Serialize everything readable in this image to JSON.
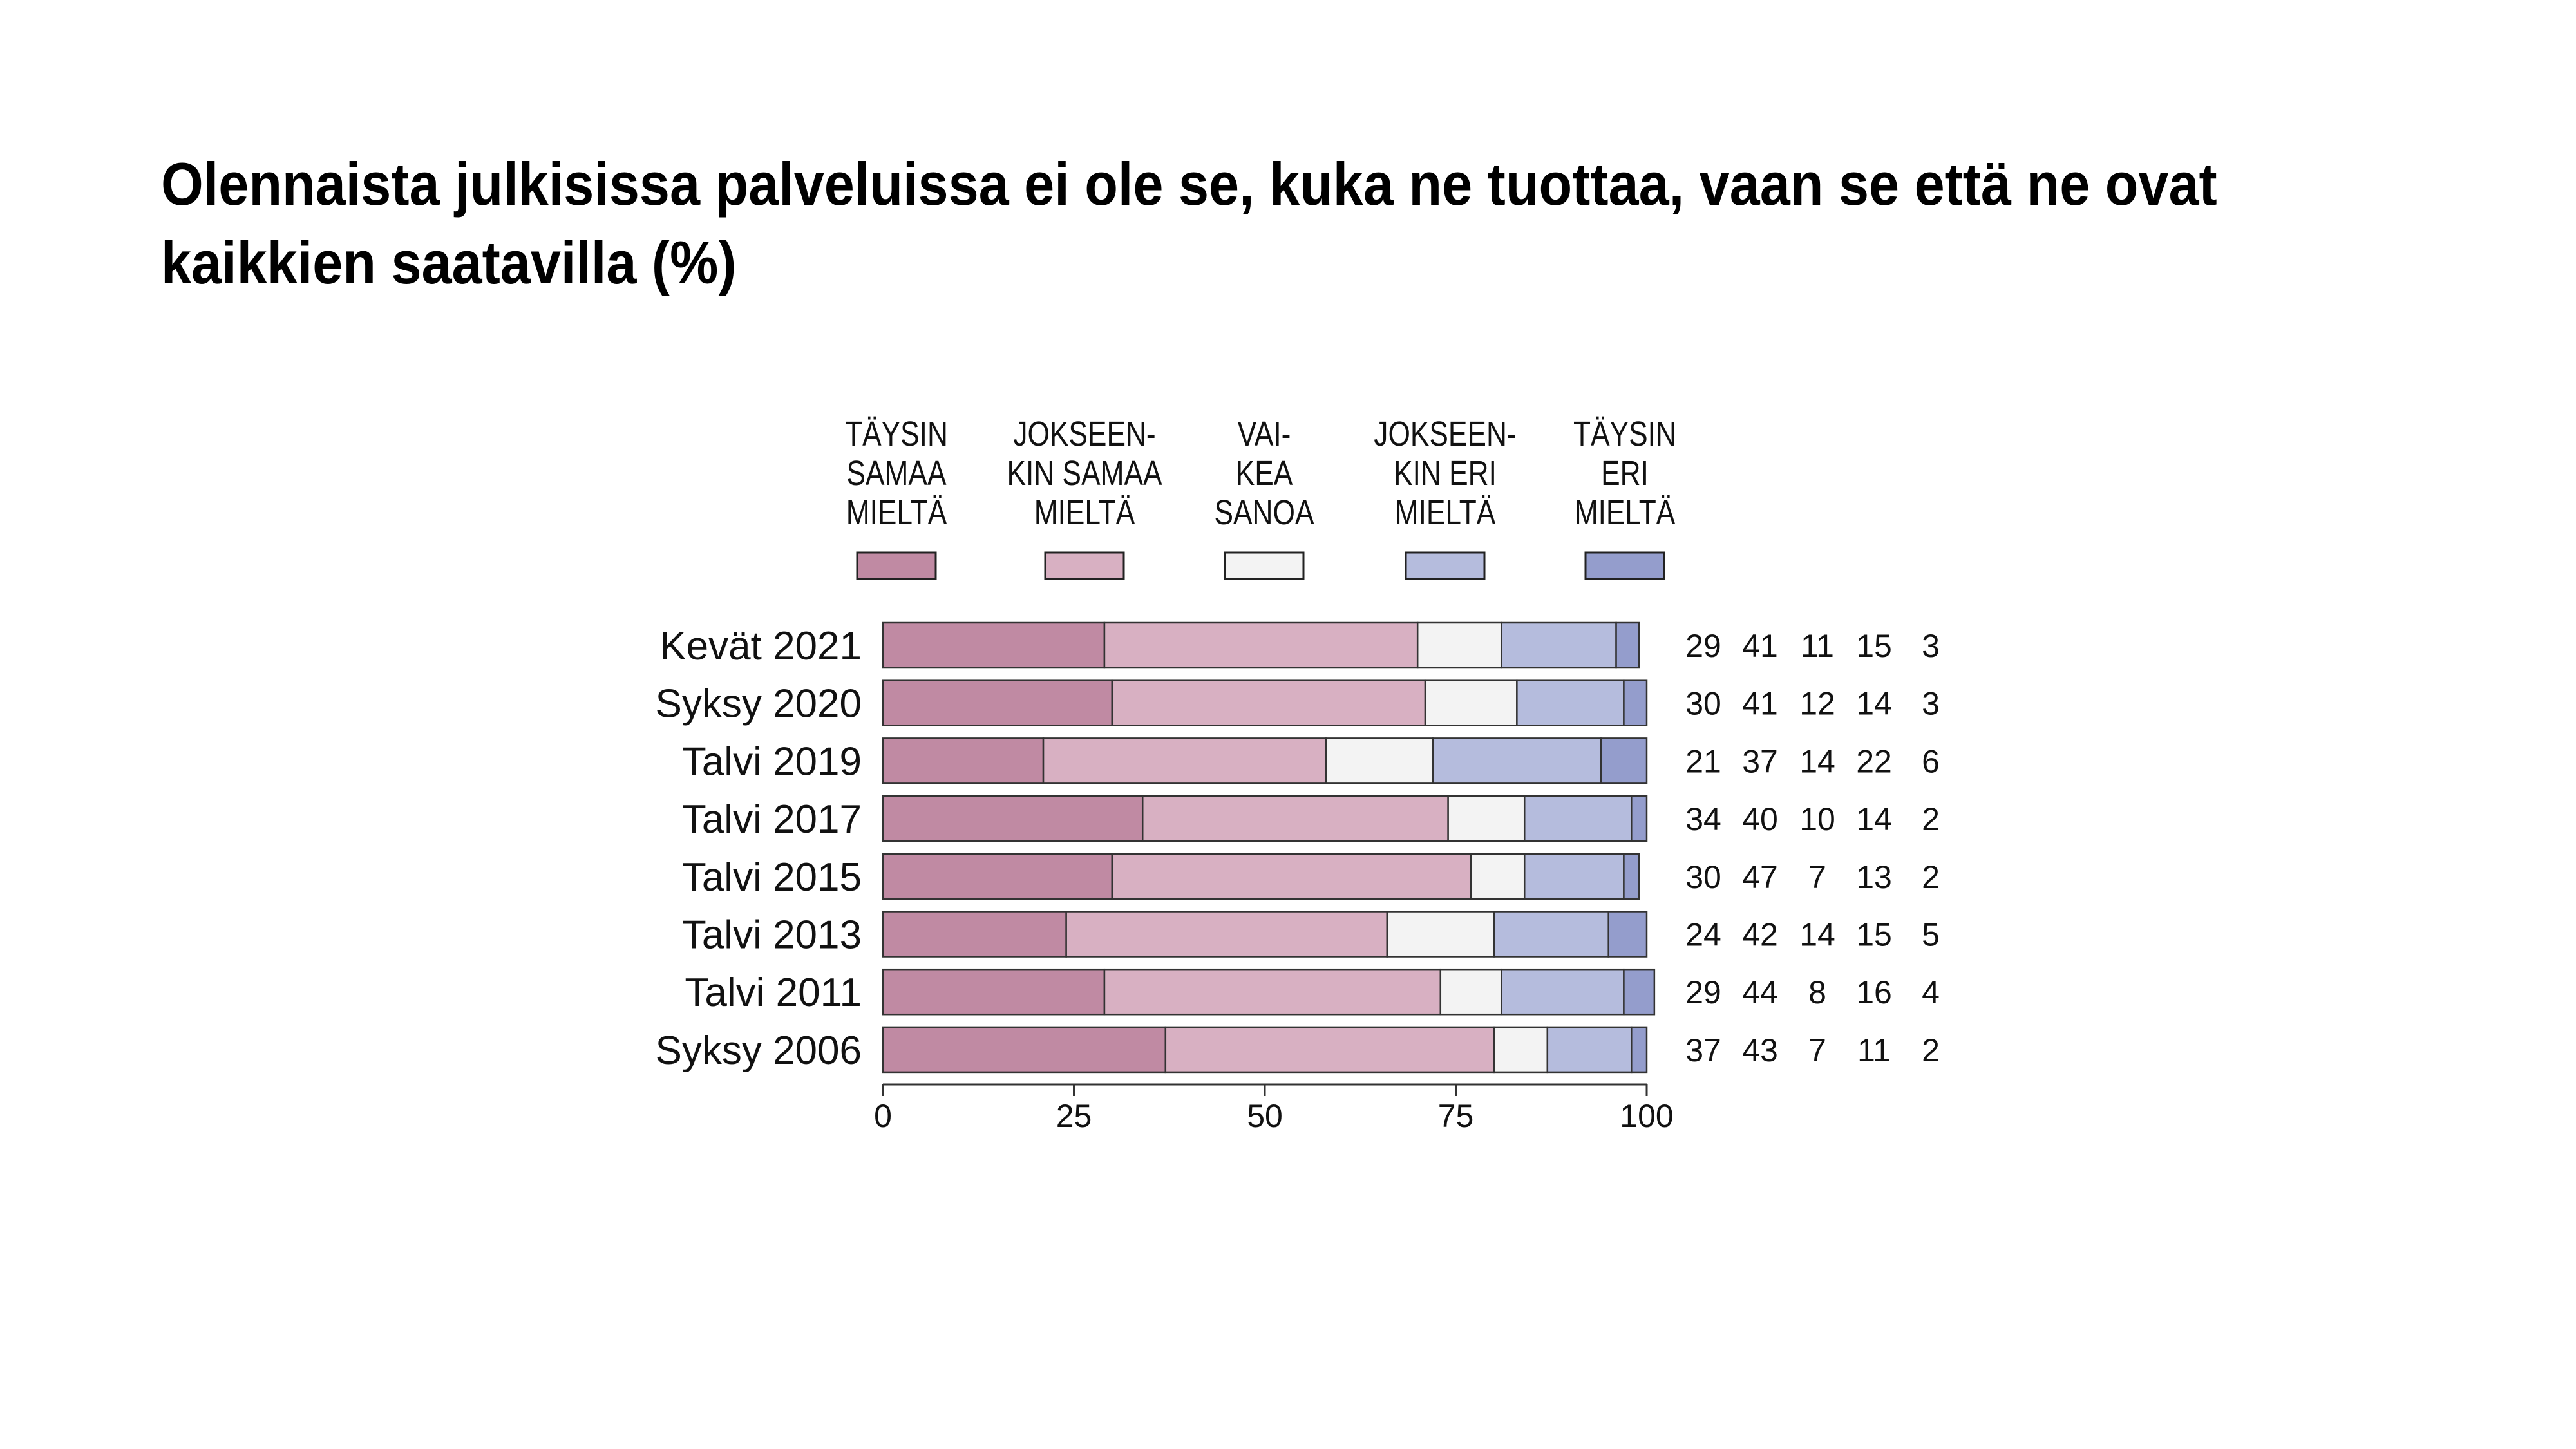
{
  "title": "Olennaista julkisissa palveluissa ei ole se, kuka ne tuottaa, vaan se että ne ovat kaikkien saatavilla (%)",
  "chart_data": {
    "type": "bar",
    "stacked": true,
    "orientation": "horizontal",
    "categories": [
      "Kevät 2021",
      "Syksy 2020",
      "Talvi 2019",
      "Talvi 2017",
      "Talvi 2015",
      "Talvi 2013",
      "Talvi 2011",
      "Syksy 2006"
    ],
    "series": [
      {
        "name": "TÄYSIN SAMAA MIELTÄ",
        "legend_lines": [
          "TÄYSIN",
          "SAMAA",
          "MIELTÄ"
        ],
        "color": "#c08aa3",
        "values": [
          29,
          30,
          21,
          34,
          30,
          24,
          29,
          37
        ]
      },
      {
        "name": "JOKSEEN-KIN SAMAA MIELTÄ",
        "legend_lines": [
          "JOKSEEN-",
          "KIN SAMAA",
          "MIELTÄ"
        ],
        "color": "#d8b0c2",
        "values": [
          41,
          41,
          37,
          40,
          47,
          42,
          44,
          43
        ]
      },
      {
        "name": "VAI-KEA SANOA",
        "legend_lines": [
          "VAI-",
          "KEA",
          "SANOA"
        ],
        "color": "#f3f3f3",
        "values": [
          11,
          12,
          14,
          10,
          7,
          14,
          8,
          7
        ]
      },
      {
        "name": "JOKSEEN-KIN ERI MIELTÄ",
        "legend_lines": [
          "JOKSEEN-",
          "KIN ERI",
          "MIELTÄ"
        ],
        "color": "#b5bcdd",
        "values": [
          15,
          14,
          22,
          14,
          13,
          15,
          16,
          11
        ]
      },
      {
        "name": "TÄYSIN ERI MIELTÄ",
        "legend_lines": [
          "TÄYSIN",
          "ERI",
          "MIELTÄ"
        ],
        "color": "#949dcc",
        "values": [
          3,
          3,
          6,
          2,
          2,
          5,
          4,
          2
        ]
      }
    ],
    "xlim": [
      0,
      100
    ],
    "xticks": [
      0,
      25,
      50,
      75,
      100
    ],
    "legend_position": "top",
    "value_labels": "right"
  }
}
